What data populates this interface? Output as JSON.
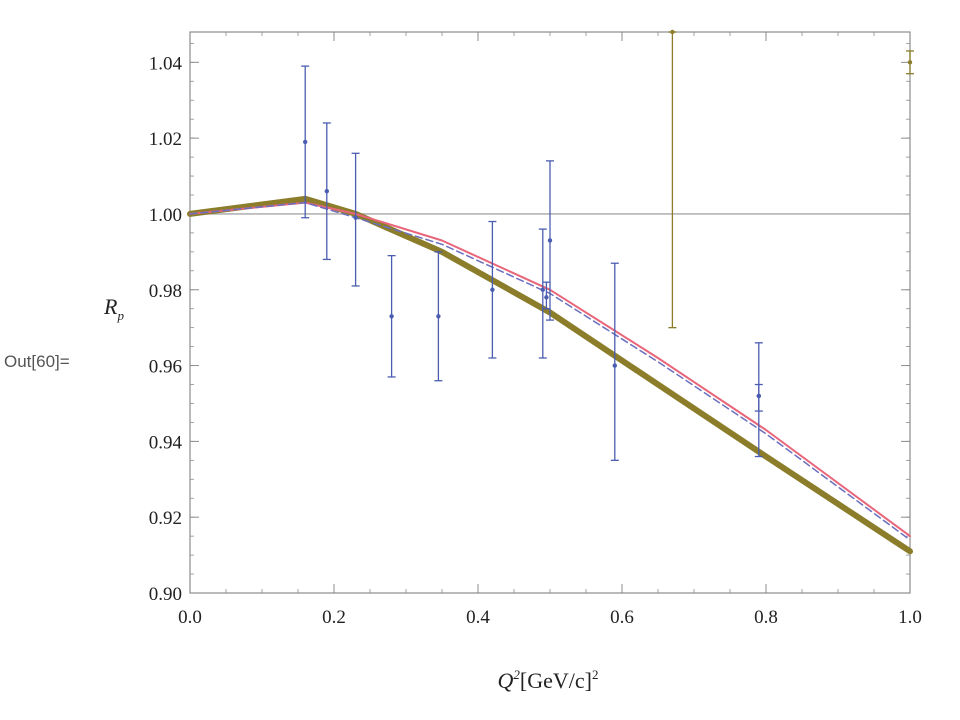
{
  "cell_label": "Out[60]=",
  "chart_data": {
    "type": "line",
    "xlabel_main": "Q",
    "xlabel_sup": "2",
    "xlabel_rest": "[GeV/c]",
    "xlabel_sup2": "2",
    "ylabel_main": "R",
    "ylabel_sub": "p",
    "xlim": [
      0.0,
      1.0
    ],
    "ylim": [
      0.9,
      1.048
    ],
    "x_ticks": [
      0.0,
      0.2,
      0.4,
      0.6,
      0.8,
      1.0
    ],
    "x_tick_labels": [
      "0.0",
      "0.2",
      "0.4",
      "0.6",
      "0.8",
      "1.0"
    ],
    "y_ticks": [
      0.9,
      0.92,
      0.94,
      0.96,
      0.98,
      1.0,
      1.02,
      1.04
    ],
    "y_tick_labels": [
      "0.90",
      "0.92",
      "0.94",
      "0.96",
      "0.98",
      "1.00",
      "1.02",
      "1.04"
    ],
    "reference_line": 1.0,
    "curves": [
      {
        "color": "#8b7d2a",
        "width": 6,
        "style": "solid",
        "x": [
          0.0,
          0.16,
          0.23,
          0.35,
          0.5,
          0.65,
          0.8,
          1.0
        ],
        "y": [
          1.0,
          1.004,
          1.0,
          0.99,
          0.974,
          0.955,
          0.936,
          0.911
        ]
      },
      {
        "color": "#e8657a",
        "width": 2,
        "style": "solid",
        "x": [
          0.0,
          0.16,
          0.23,
          0.35,
          0.5,
          0.65,
          0.8,
          1.0
        ],
        "y": [
          1.0,
          1.003,
          1.0,
          0.993,
          0.98,
          0.962,
          0.943,
          0.915
        ]
      },
      {
        "color": "#6a6fbf",
        "width": 1.5,
        "style": "dashed",
        "x": [
          0.0,
          0.16,
          0.23,
          0.35,
          0.5,
          0.65,
          0.8,
          1.0
        ],
        "y": [
          1.0,
          1.003,
          0.999,
          0.992,
          0.979,
          0.961,
          0.942,
          0.914
        ]
      }
    ],
    "points": [
      {
        "x": 0.16,
        "y": 1.019,
        "err_low": 0.999,
        "err_high": 1.039
      },
      {
        "x": 0.19,
        "y": 1.006,
        "err_low": 0.988,
        "err_high": 1.024
      },
      {
        "x": 0.23,
        "y": 0.999,
        "err_low": 0.981,
        "err_high": 1.016
      },
      {
        "x": 0.28,
        "y": 0.973,
        "err_low": 0.957,
        "err_high": 0.989
      },
      {
        "x": 0.345,
        "y": 0.973,
        "err_low": 0.956,
        "err_high": 0.99
      },
      {
        "x": 0.42,
        "y": 0.98,
        "err_low": 0.962,
        "err_high": 0.998
      },
      {
        "x": 0.49,
        "y": 0.98,
        "err_low": 0.962,
        "err_high": 0.996
      },
      {
        "x": 0.495,
        "y": 0.978,
        "err_low": 0.975,
        "err_high": 0.982
      },
      {
        "x": 0.5,
        "y": 0.993,
        "err_low": 0.972,
        "err_high": 1.014
      },
      {
        "x": 0.59,
        "y": 0.96,
        "err_low": 0.935,
        "err_high": 0.987
      },
      {
        "x": 0.79,
        "y": 0.952,
        "err_low": 0.936,
        "err_high": 0.966
      },
      {
        "x": 0.79,
        "y": 0.952,
        "err_low": 0.948,
        "err_high": 0.955
      }
    ],
    "outlier_points": [
      {
        "x": 0.67,
        "y": 1.048,
        "err_low": 0.97,
        "err_high": 1.048
      },
      {
        "x": 1.0,
        "y": 1.04,
        "err_low": 1.037,
        "err_high": 1.043
      }
    ],
    "colors": {
      "points": "#4b5db0",
      "outlier": "#8b7d2a",
      "frame": "#8c8c8c",
      "reference": "#a6a6a6"
    }
  }
}
